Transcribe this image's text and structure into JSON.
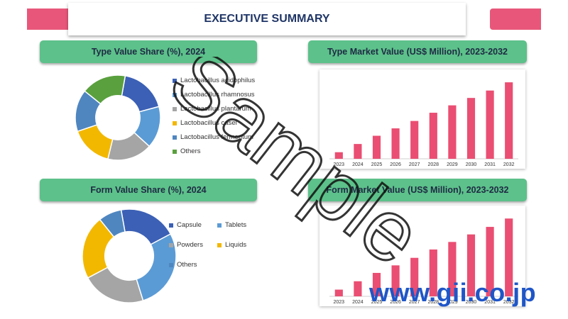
{
  "header": {
    "title": "EXECUTIVE SUMMARY"
  },
  "colors": {
    "accent": "#e8577a",
    "pill": "#5cc18a",
    "title": "#1f3566",
    "bar": "#ea4e72"
  },
  "watermark": {
    "text": "Sample",
    "site": "www.gii.co.jp"
  },
  "chart_data": [
    {
      "type": "pie",
      "title": "Type Value Share (%), 2024",
      "labels": [
        "Lactobacillus acidophilus",
        "Lactobacillus rhamnosus",
        "Lactobacillus plantarum",
        "Lactobacillus casei",
        "Lactobacillus fermentum",
        "Others"
      ],
      "values": [
        18,
        16,
        17,
        16,
        16,
        17
      ],
      "colors": [
        "#3b60b5",
        "#5b9bd5",
        "#a5a5a5",
        "#f2b800",
        "#4f86c0",
        "#5aa03e"
      ],
      "legend": "right"
    },
    {
      "type": "bar",
      "title": "Type Market Value (US$ Million), 2023-2032",
      "categories": [
        "2023",
        "2024",
        "2025",
        "2026",
        "2027",
        "2028",
        "2029",
        "2030",
        "2031",
        "2032"
      ],
      "values": [
        8,
        18,
        28,
        37,
        46,
        56,
        65,
        74,
        83,
        93
      ],
      "ylim": [
        0,
        100
      ]
    },
    {
      "type": "pie",
      "title": "Form Value Share (%), 2024",
      "labels": [
        "Capsule",
        "Tablets",
        "Powders",
        "Liquids",
        "Others"
      ],
      "values": [
        20,
        28,
        22,
        22,
        8
      ],
      "colors": [
        "#3b60b5",
        "#5b9bd5",
        "#a5a5a5",
        "#f2b800",
        "#4f86c0"
      ],
      "legend": "right"
    },
    {
      "type": "bar",
      "title": "Form Market Value (US$ Million), 2023-2032",
      "categories": [
        "2023",
        "2024",
        "2025",
        "2026",
        "2027",
        "2028",
        "2029",
        "2030",
        "2031",
        "2032"
      ],
      "values": [
        8,
        18,
        28,
        37,
        46,
        56,
        65,
        74,
        83,
        93
      ],
      "ylim": [
        0,
        100
      ]
    }
  ]
}
